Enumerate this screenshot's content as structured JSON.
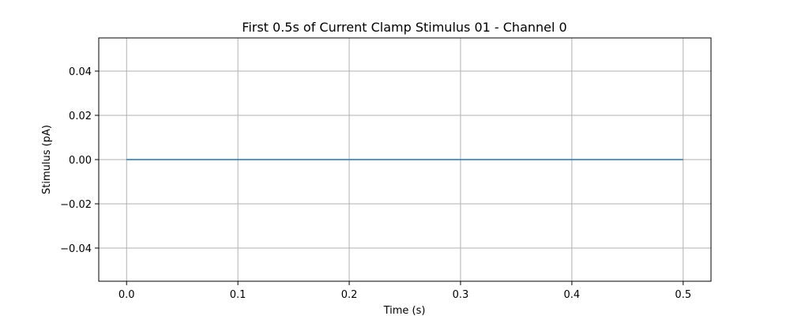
{
  "chart_data": {
    "type": "line",
    "title": "First 0.5s of Current Clamp Stimulus 01 - Channel 0",
    "xlabel": "Time (s)",
    "ylabel": "Stimulus (pA)",
    "xlim": [
      -0.025,
      0.525
    ],
    "ylim": [
      -0.055,
      0.055
    ],
    "xticks": [
      0.0,
      0.1,
      0.2,
      0.3,
      0.4,
      0.5
    ],
    "xtick_labels": [
      "0.0",
      "0.1",
      "0.2",
      "0.3",
      "0.4",
      "0.5"
    ],
    "yticks": [
      0.04,
      0.02,
      0.0,
      -0.02,
      -0.04
    ],
    "ytick_labels": [
      "0.04",
      "0.02",
      "0.00",
      "−0.02",
      "−0.04"
    ],
    "grid": true,
    "series": [
      {
        "color": "#1f77b4",
        "x": [
          0.0,
          0.5
        ],
        "y": [
          0.0,
          0.0
        ]
      }
    ]
  }
}
